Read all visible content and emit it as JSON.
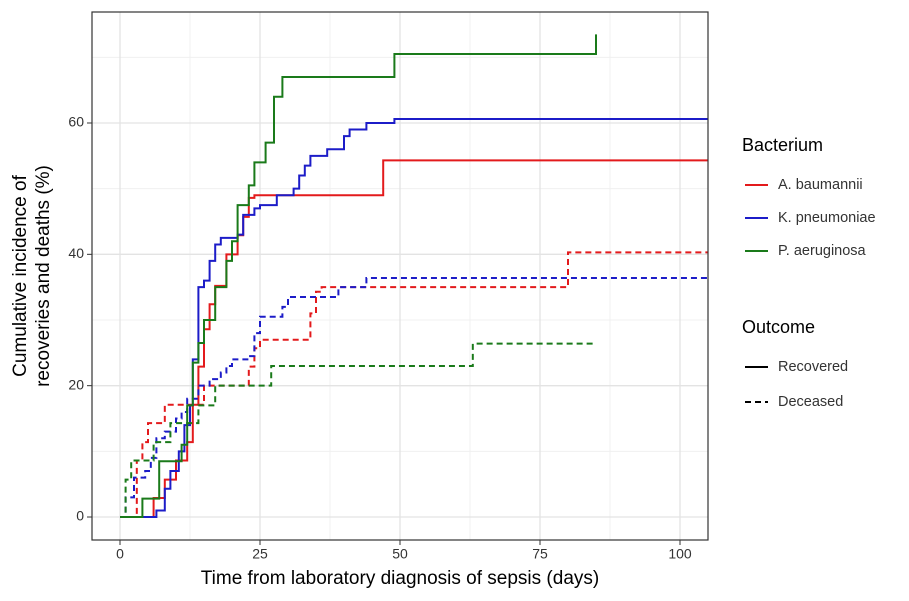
{
  "chart_data": {
    "type": "step",
    "x_label": "Time from laboratory diagnosis of sepsis (days)",
    "y_label": [
      "Cumulative incidence of",
      "recoveries and deaths (%)"
    ],
    "xlim": [
      -5,
      105
    ],
    "ylim": [
      -3.5,
      76.9
    ],
    "xticks": [
      0,
      25,
      50,
      75,
      100
    ],
    "yticks": [
      0,
      20,
      40,
      60
    ],
    "grid": true,
    "minor_grid": true,
    "legend_position": "right",
    "color_title": "Bacterium",
    "linetype_title": "Outcome",
    "outcomes": [
      {
        "name": "Recovered",
        "linetype": "solid"
      },
      {
        "name": "Deceased",
        "linetype": "dashed"
      }
    ],
    "groups": [
      {
        "name": "A. baumannii",
        "color": "#e31a1c",
        "series": [
          {
            "x": [
              0,
              6,
              8,
              10,
              12,
              13,
              14,
              15,
              16,
              17,
              19,
              21,
              22,
              23,
              24,
              47,
              105
            ],
            "values": [
              0,
              2.9,
              5.7,
              8.6,
              11.4,
              17.1,
              22.9,
              28.6,
              32.4,
              35.2,
              40,
              42.9,
              45.7,
              48.6,
              49,
              54.3,
              54.3
            ]
          },
          {
            "x": [
              0,
              3,
              4,
              5,
              8,
              15,
              23,
              24,
              25,
              34,
              35,
              36,
              80,
              105
            ],
            "values": [
              0,
              8.6,
              11.4,
              14.3,
              17.1,
              20,
              22.9,
              25.7,
              27,
              31,
              34.3,
              35,
              40.3,
              40.3
            ]
          }
        ]
      },
      {
        "name": "K. pneumoniae",
        "color": "#1c1cc8",
        "series": [
          {
            "x": [
              0,
              6.5,
              8,
              9,
              10.5,
              11.5,
              12.5,
              13,
              14,
              15,
              16,
              17,
              18,
              21,
              22,
              24,
              25,
              28,
              31,
              32,
              33,
              34,
              37,
              40,
              41,
              44,
              49,
              105
            ],
            "values": [
              0,
              1,
              4.3,
              7,
              10,
              14,
              17,
              24,
              35,
              36,
              39,
              41.5,
              42.5,
              43,
              46,
              47,
              47.5,
              49,
              50,
              52,
              53.5,
              55,
              56,
              58,
              59,
              60,
              60.6,
              60.6
            ]
          },
          {
            "x": [
              0,
              1,
              2.5,
              4.5,
              5.5,
              6.5,
              8,
              10,
              11,
              12,
              14,
              16,
              18,
              19,
              20,
              23,
              24,
              25,
              29,
              30,
              39,
              44,
              105
            ],
            "values": [
              0,
              3,
              6,
              7,
              9,
              12,
              13,
              15,
              16,
              18,
              20,
              21,
              22,
              23,
              24,
              24.5,
              28,
              30.5,
              32,
              33.5,
              35,
              36.4,
              36.4
            ]
          }
        ]
      },
      {
        "name": "P. aeruginosa",
        "color": "#1a7a1a",
        "series": [
          {
            "x": [
              0,
              4,
              7,
              11,
              12,
              13,
              14,
              15,
              17,
              19,
              20,
              21,
              23,
              24,
              26,
              27.5,
              29,
              49,
              85
            ],
            "values": [
              0,
              2.8,
              8.5,
              11,
              17,
              23.5,
              26.5,
              30,
              35,
              39,
              42,
              47.5,
              50.5,
              54,
              57,
              64,
              67,
              70.5,
              73.5
            ]
          },
          {
            "x": [
              0,
              1,
              2,
              6,
              9,
              14,
              17,
              27,
              63,
              85
            ],
            "values": [
              0,
              5.7,
              8.6,
              11.4,
              14.3,
              17,
              20,
              23,
              26.4,
              26.4
            ]
          }
        ]
      }
    ]
  }
}
